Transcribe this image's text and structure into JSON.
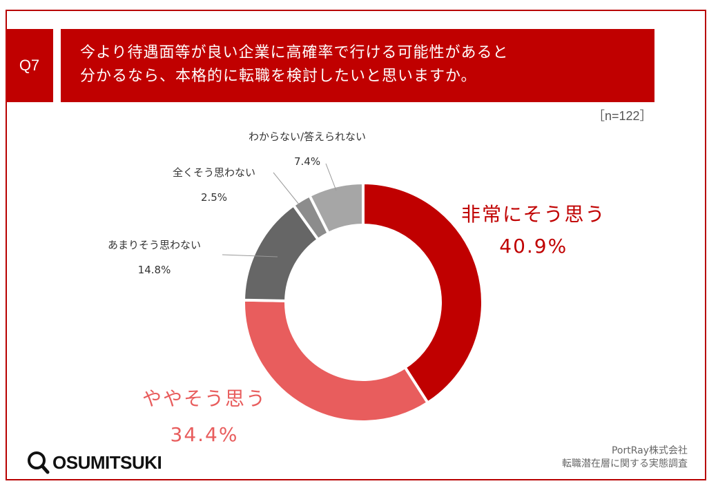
{
  "header": {
    "q_label": "Q7",
    "title_line1": "今より待遇面等が良い企業に高確率で行ける可能性があると",
    "title_line2": "分かるなら、本格的に転職を検討したいと思いますか。",
    "sample_size": "［n=122］"
  },
  "chart_data": {
    "type": "pie",
    "donut": true,
    "slices": [
      {
        "label": "非常にそう思う",
        "value": 40.9,
        "value_label": "40.9%",
        "color": "#c00000"
      },
      {
        "label": "ややそう思う",
        "value": 34.4,
        "value_label": "34.4%",
        "color": "#e85d5d"
      },
      {
        "label": "あまりそう思わない",
        "value": 14.8,
        "value_label": "14.8%",
        "color": "#666666"
      },
      {
        "label": "全くそう思わない",
        "value": 2.5,
        "value_label": "2.5%",
        "color": "#8c8c8c"
      },
      {
        "label": "わからない/答えられない",
        "value": 7.4,
        "value_label": "7.4%",
        "color": "#a6a6a6"
      }
    ]
  },
  "footer": {
    "company": "PortRay株式会社",
    "survey": "転職潜在層に関する実態調査"
  },
  "logo": {
    "text": "OSUMITSUKI",
    "icon": "magnifier-icon"
  }
}
